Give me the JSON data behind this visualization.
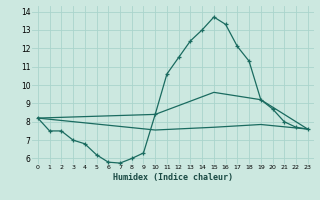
{
  "xlabel": "Humidex (Indice chaleur)",
  "bg_color": "#cce8e0",
  "grid_color": "#aad4cc",
  "line_color": "#1a6b60",
  "xlim": [
    -0.5,
    23.5
  ],
  "ylim": [
    5.7,
    14.3
  ],
  "yticks": [
    6,
    7,
    8,
    9,
    10,
    11,
    12,
    13,
    14
  ],
  "xticks": [
    0,
    1,
    2,
    3,
    4,
    5,
    6,
    7,
    8,
    9,
    10,
    11,
    12,
    13,
    14,
    15,
    16,
    17,
    18,
    19,
    20,
    21,
    22,
    23
  ],
  "line1_x": [
    0,
    1,
    2,
    3,
    4,
    5,
    6,
    7,
    8,
    9,
    10,
    11,
    12,
    13,
    14,
    15,
    16,
    17,
    18,
    19,
    20,
    21,
    22,
    23
  ],
  "line1_y": [
    8.2,
    7.5,
    7.5,
    7.0,
    6.8,
    6.2,
    5.8,
    5.75,
    6.0,
    6.3,
    8.4,
    10.6,
    11.5,
    12.4,
    13.0,
    13.7,
    13.3,
    12.1,
    11.3,
    9.2,
    8.7,
    8.0,
    7.7,
    7.6
  ],
  "line2_x": [
    0,
    10,
    15,
    19,
    23
  ],
  "line2_y": [
    8.2,
    8.4,
    9.6,
    9.2,
    7.6
  ],
  "line3_x": [
    0,
    10,
    15,
    19,
    23
  ],
  "line3_y": [
    8.2,
    7.55,
    7.7,
    7.85,
    7.6
  ]
}
